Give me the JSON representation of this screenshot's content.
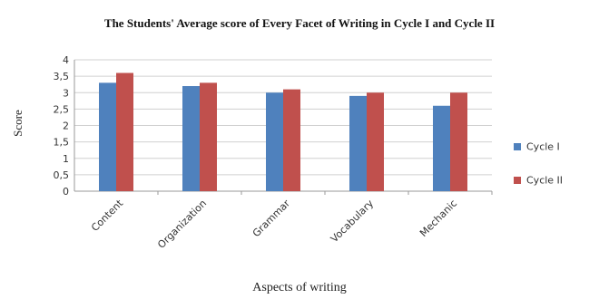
{
  "chart_data": {
    "type": "bar",
    "title": "The Students' Average score of Every Facet of Writing in Cycle I and Cycle II",
    "xlabel": "Aspects of writing",
    "ylabel": "Score",
    "categories": [
      "Content",
      "Organization",
      "Grammar",
      "Vocabulary",
      "Mechanic"
    ],
    "series": [
      {
        "name": "Cycle I",
        "color": "#4f81bd",
        "values": [
          3.3,
          3.2,
          3.0,
          2.9,
          2.6
        ]
      },
      {
        "name": "Cycle II",
        "color": "#c0504d",
        "values": [
          3.6,
          3.3,
          3.1,
          3.0,
          3.0
        ]
      }
    ],
    "ylim": [
      0,
      4
    ],
    "yticks": [
      "0",
      "0,5",
      "1",
      "1,5",
      "2",
      "2,5",
      "3",
      "3,5",
      "4"
    ],
    "grid": true,
    "legend": "right"
  }
}
